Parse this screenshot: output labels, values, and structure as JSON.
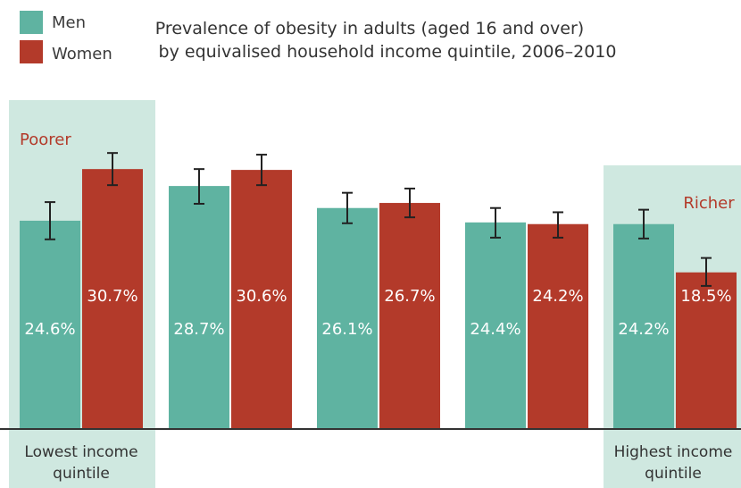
{
  "chart_data": {
    "type": "bar",
    "title_line1": "Prevalence of obesity in adults (aged 16 and over)",
    "title_line2": "by equivalised household income quintile, 2006–2010",
    "categories": [
      "",
      "",
      "",
      "",
      ""
    ],
    "series": [
      {
        "name": "Men",
        "color": "#5fb3a1",
        "values": [
          24.6,
          28.7,
          26.1,
          24.4,
          24.2
        ],
        "labels": [
          "24.6%",
          "28.7%",
          "26.1%",
          "24.4%",
          "24.2%"
        ],
        "error": [
          [
            22.4,
            26.8
          ],
          [
            26.6,
            30.7
          ],
          [
            24.3,
            27.9
          ],
          [
            22.6,
            26.1
          ],
          [
            22.5,
            25.9
          ]
        ]
      },
      {
        "name": "Women",
        "color": "#b33a2a",
        "values": [
          30.7,
          30.6,
          26.7,
          24.2,
          18.5
        ],
        "labels": [
          "30.7%",
          "30.6%",
          "26.7%",
          "24.2%",
          "18.5%"
        ],
        "error": [
          [
            28.8,
            32.6
          ],
          [
            28.8,
            32.4
          ],
          [
            25.0,
            28.4
          ],
          [
            22.6,
            25.6
          ],
          [
            16.9,
            20.2
          ]
        ]
      }
    ],
    "ylim": [
      0,
      38
    ],
    "annotations": {
      "poorer": "Poorer",
      "richer": "Richer",
      "lowest_line1": "Lowest income",
      "lowest_line2": "quintile",
      "highest_line1": "Highest income",
      "highest_line2": "quintile"
    },
    "highlight_color": "#cfe8e0",
    "annotation_color": "#b33a2a",
    "legend_position": "top-left",
    "grid": false
  }
}
